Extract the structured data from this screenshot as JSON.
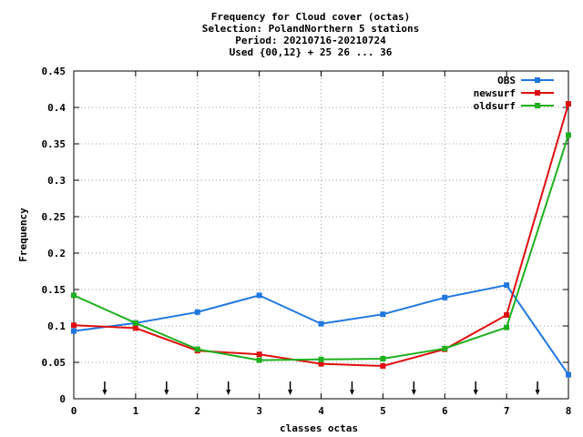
{
  "chart_data": {
    "type": "line",
    "title_lines": [
      "Frequency  for Cloud cover (octas)",
      "Selection: PolandNorthern      5 stations",
      "Period: 20210716-20210724",
      "Used {00,12} + 25 26 ... 36"
    ],
    "xlabel": "classes octas",
    "ylabel": "Frequency",
    "xlim": [
      0,
      8
    ],
    "ylim": [
      0,
      0.45
    ],
    "xticks": [
      "0",
      "1",
      "2",
      "3",
      "4",
      "5",
      "6",
      "7",
      "8"
    ],
    "yticks": [
      "0",
      "0.05",
      "0.1",
      "0.15",
      "0.2",
      "0.25",
      "0.3",
      "0.35",
      "0.4",
      "0.45"
    ],
    "grid": true,
    "legend_position": "top-right",
    "x": [
      0,
      1,
      2,
      3,
      4,
      5,
      6,
      7,
      8
    ],
    "series": [
      {
        "name": "OBS",
        "color": "#1f77e0",
        "values": [
          0.093,
          0.104,
          0.119,
          0.142,
          0.103,
          0.116,
          0.139,
          0.156,
          0.033
        ]
      },
      {
        "name": "newsurf",
        "color": "#e01010",
        "values": [
          0.101,
          0.097,
          0.066,
          0.061,
          0.048,
          0.045,
          0.068,
          0.115,
          0.405
        ]
      },
      {
        "name": "oldsurf",
        "color": "#1fb01f",
        "values": [
          0.142,
          0.104,
          0.068,
          0.053,
          0.054,
          0.055,
          0.069,
          0.098,
          0.362
        ]
      }
    ],
    "class_boundary_markers": [
      0.5,
      1.5,
      2.5,
      3.5,
      4.5,
      5.5,
      6.5,
      7.5
    ]
  }
}
